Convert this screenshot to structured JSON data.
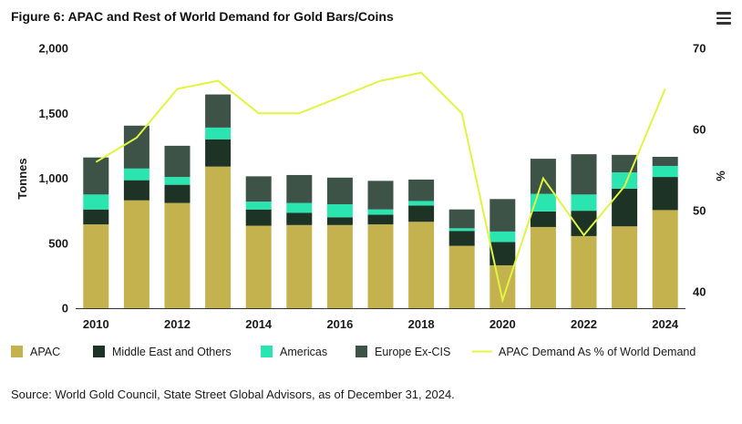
{
  "header": {
    "title": "Figure 6: APAC and Rest of World Demand for Gold Bars/Coins"
  },
  "menu": {
    "icon": "hamburger-menu-icon"
  },
  "footer": {
    "source": "Source: World Gold Council, State Street Global Advisors, as of December 31, 2024."
  },
  "colors": {
    "apac": "#c4b24e",
    "middle_east": "#1c3326",
    "americas": "#2be5b0",
    "europe": "#3d5347",
    "line": "#e0f542"
  },
  "chart_data": {
    "type": "bar",
    "stacked": true,
    "categories": [
      "2010",
      "2011",
      "2012",
      "2013",
      "2014",
      "2015",
      "2016",
      "2017",
      "2018",
      "2019",
      "2020",
      "2021",
      "2022",
      "2023",
      "2024"
    ],
    "x_tick_labels": [
      "2010",
      "2012",
      "2014",
      "2016",
      "2018",
      "2020",
      "2022",
      "2024"
    ],
    "ylabel": "Tonnes",
    "ylim": [
      0,
      2000
    ],
    "y_ticks": [
      "0",
      "500",
      "1,000",
      "1,500",
      "2,000"
    ],
    "y2label": "%",
    "y2lim": [
      38,
      70
    ],
    "y2_ticks": [
      "40",
      "50",
      "60",
      "70"
    ],
    "legend_position": "bottom",
    "series": [
      {
        "name": "APAC",
        "key": "apac",
        "values": [
          645,
          830,
          810,
          1090,
          635,
          640,
          640,
          645,
          665,
          480,
          330,
          625,
          555,
          630,
          755
        ]
      },
      {
        "name": "Middle East and Others",
        "key": "middle_east",
        "values": [
          115,
          155,
          140,
          210,
          125,
          95,
          60,
          75,
          125,
          115,
          180,
          120,
          195,
          290,
          255
        ]
      },
      {
        "name": "Americas",
        "key": "americas",
        "values": [
          115,
          90,
          60,
          90,
          60,
          75,
          100,
          40,
          35,
          20,
          80,
          135,
          125,
          125,
          85
        ]
      },
      {
        "name": "Europe Ex-CIS",
        "key": "europe",
        "values": [
          285,
          330,
          240,
          255,
          195,
          215,
          205,
          220,
          165,
          145,
          250,
          270,
          310,
          135,
          70
        ]
      }
    ],
    "line_series": {
      "name": "APAC Demand As % of World Demand",
      "axis": "right",
      "values": [
        56,
        59,
        65,
        66,
        62,
        62,
        64,
        66,
        67,
        62,
        39,
        54,
        47,
        53,
        65
      ]
    }
  }
}
